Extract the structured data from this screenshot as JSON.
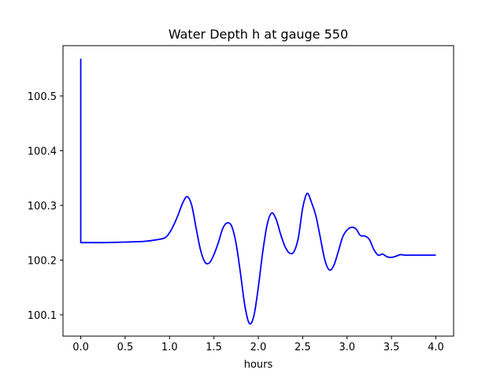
{
  "chart_data": {
    "type": "line",
    "title": "Water Depth h at gauge 550",
    "xlabel": "hours",
    "ylabel": "",
    "xlim": [
      -0.2,
      4.2
    ],
    "ylim": [
      100.061,
      100.592
    ],
    "xticks": [
      0.0,
      0.5,
      1.0,
      1.5,
      2.0,
      2.5,
      3.0,
      3.5,
      4.0
    ],
    "xtick_labels": [
      "0.0",
      "0.5",
      "1.0",
      "1.5",
      "2.0",
      "2.5",
      "3.0",
      "3.5",
      "4.0"
    ],
    "yticks": [
      100.1,
      100.2,
      100.3,
      100.4,
      100.5
    ],
    "ytick_labels": [
      "100.1",
      "100.2",
      "100.3",
      "100.4",
      "100.5"
    ],
    "grid": false,
    "series": [
      {
        "color": "#0000ff",
        "x": [
          0.0,
          0.0,
          0.0,
          0.25,
          0.5,
          0.7,
          0.85,
          0.95,
          1.0,
          1.05,
          1.1,
          1.15,
          1.2,
          1.25,
          1.3,
          1.35,
          1.4,
          1.45,
          1.5,
          1.55,
          1.6,
          1.65,
          1.7,
          1.75,
          1.8,
          1.85,
          1.9,
          1.95,
          2.0,
          2.05,
          2.1,
          2.15,
          2.2,
          2.25,
          2.3,
          2.35,
          2.4,
          2.45,
          2.5,
          2.55,
          2.6,
          2.65,
          2.7,
          2.75,
          2.8,
          2.85,
          2.9,
          2.95,
          3.0,
          3.05,
          3.1,
          3.15,
          3.2,
          3.25,
          3.3,
          3.35,
          3.4,
          3.45,
          3.5,
          3.55,
          3.6,
          3.65,
          3.7,
          3.75,
          3.8,
          3.85,
          3.9,
          3.95,
          4.0
        ],
        "y": [
          100.568,
          100.4,
          100.232,
          100.232,
          100.233,
          100.234,
          100.237,
          100.241,
          100.25,
          100.265,
          100.284,
          100.305,
          100.316,
          100.3,
          100.258,
          100.218,
          100.196,
          100.195,
          100.21,
          100.232,
          100.258,
          100.268,
          100.262,
          100.23,
          100.175,
          100.115,
          100.084,
          100.098,
          100.15,
          100.215,
          100.265,
          100.286,
          100.275,
          100.248,
          100.225,
          100.213,
          100.215,
          100.24,
          100.295,
          100.322,
          100.305,
          100.28,
          100.24,
          100.2,
          100.182,
          100.19,
          100.215,
          100.242,
          100.255,
          100.26,
          100.257,
          100.245,
          100.244,
          100.238,
          100.22,
          100.209,
          100.211,
          100.206,
          100.205,
          100.207,
          100.21,
          100.209,
          100.209,
          100.209,
          100.209,
          100.209,
          100.209,
          100.209,
          100.209
        ]
      }
    ]
  }
}
